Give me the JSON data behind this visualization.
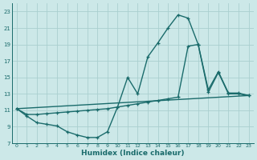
{
  "xlabel": "Humidex (Indice chaleur)",
  "bg_color": "#cce8e8",
  "grid_color": "#aacfcf",
  "line_color": "#1a6b6b",
  "xlim": [
    -0.5,
    23.5
  ],
  "ylim": [
    7,
    24
  ],
  "xticks": [
    0,
    1,
    2,
    3,
    4,
    5,
    6,
    7,
    8,
    9,
    10,
    11,
    12,
    13,
    14,
    15,
    16,
    17,
    18,
    19,
    20,
    21,
    22,
    23
  ],
  "yticks": [
    7,
    9,
    11,
    13,
    15,
    17,
    19,
    21,
    23
  ],
  "curve1_x": [
    0,
    1,
    2,
    3,
    4,
    5,
    6,
    7,
    8,
    9,
    10,
    11,
    12,
    13,
    14,
    15,
    16,
    17,
    18,
    19,
    20,
    21,
    22,
    23
  ],
  "curve1_y": [
    11.2,
    10.3,
    9.5,
    9.3,
    9.1,
    8.4,
    8.0,
    7.7,
    7.7,
    8.4,
    11.4,
    15.0,
    13.0,
    17.5,
    19.2,
    21.0,
    22.6,
    22.2,
    19.0,
    13.5,
    15.7,
    13.1,
    13.1,
    12.8
  ],
  "curve2_x": [
    0,
    1,
    2,
    3,
    4,
    5,
    6,
    7,
    8,
    9,
    10,
    11,
    12,
    13,
    14,
    15,
    16,
    17,
    18,
    19,
    20,
    21,
    22,
    23
  ],
  "curve2_y": [
    11.2,
    10.5,
    10.5,
    10.6,
    10.7,
    10.8,
    10.9,
    11.0,
    11.1,
    11.2,
    11.4,
    11.6,
    11.8,
    12.0,
    12.2,
    12.4,
    12.6,
    18.8,
    19.0,
    13.2,
    15.6,
    13.0,
    13.0,
    12.8
  ],
  "curve3_x": [
    0,
    23
  ],
  "curve3_y": [
    11.2,
    12.8
  ],
  "line_width": 1.0,
  "marker": "+",
  "markersize": 3.5
}
